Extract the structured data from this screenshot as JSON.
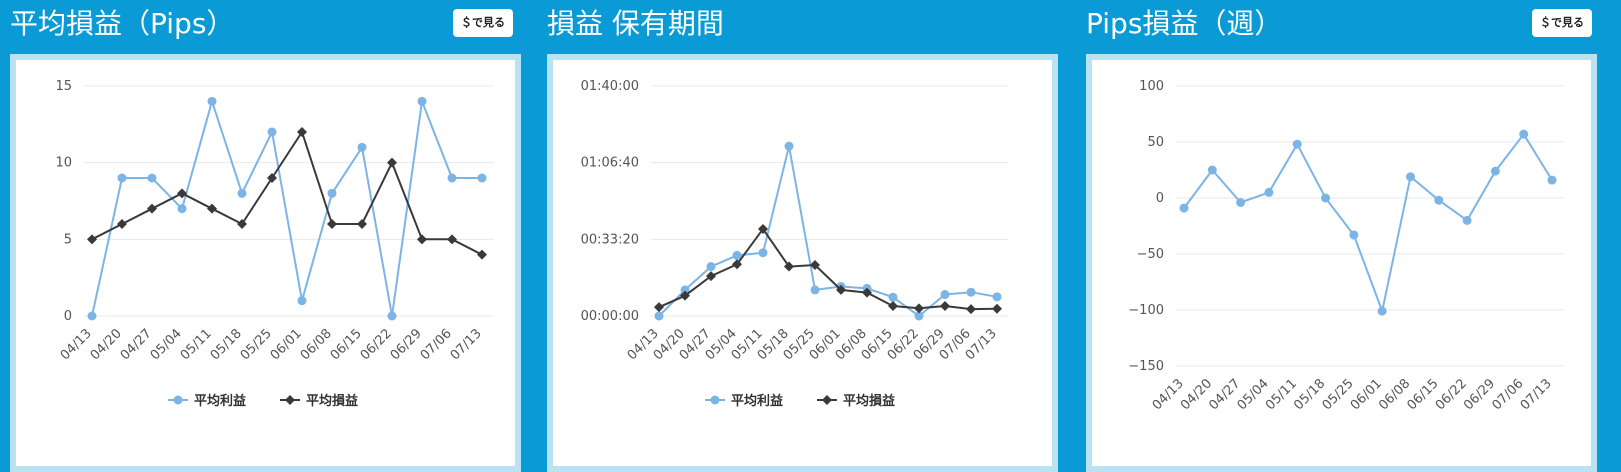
{
  "panels": [
    {
      "title": "平均損益（Pips）",
      "button": "＄で見る"
    },
    {
      "title": "損益 保有期間",
      "button": ""
    },
    {
      "title": "Pips損益（週）",
      "button": "＄で見る"
    }
  ],
  "colors": {
    "background": "#0a9ad6",
    "frame": "#b9e2f3",
    "profit": "#7db4e6",
    "loss": "#3a3a3a",
    "grid": "#e4e8ee"
  },
  "chart_data": [
    {
      "type": "line",
      "categories": [
        "04/13",
        "04/20",
        "04/27",
        "05/04",
        "05/11",
        "05/18",
        "05/25",
        "06/01",
        "06/08",
        "06/15",
        "06/22",
        "06/29",
        "07/06",
        "07/13"
      ],
      "ylim": [
        0,
        15
      ],
      "yticks": [
        0,
        5,
        10,
        15
      ],
      "ytick_labels": [
        "0",
        "5",
        "10",
        "15"
      ],
      "legend": "bottom-center",
      "series": [
        {
          "name": "平均利益",
          "marker": "circle",
          "values": [
            0,
            9,
            9,
            7,
            14,
            8,
            12,
            1,
            8,
            11,
            0,
            14,
            9,
            9
          ]
        },
        {
          "name": "平均損益",
          "marker": "diamond",
          "values": [
            5,
            6,
            7,
            8,
            7,
            6,
            9,
            12,
            6,
            6,
            10,
            5,
            5,
            4
          ]
        }
      ]
    },
    {
      "type": "line",
      "categories": [
        "04/13",
        "04/20",
        "04/27",
        "05/04",
        "05/11",
        "05/18",
        "05/25",
        "06/01",
        "06/08",
        "06/15",
        "06/22",
        "06/29",
        "07/06",
        "07/13"
      ],
      "ylim": [
        0,
        6000
      ],
      "yticks": [
        0,
        2000,
        4000,
        6000
      ],
      "ytick_labels": [
        "00:00:00",
        "00:33:20",
        "01:06:40",
        "01:40:00"
      ],
      "legend": "bottom-center",
      "series": [
        {
          "name": "平均利益",
          "marker": "circle",
          "values": [
            0,
            680,
            1290,
            1580,
            1650,
            4430,
            680,
            770,
            720,
            490,
            0,
            560,
            620,
            500
          ]
        },
        {
          "name": "平均損益",
          "marker": "diamond",
          "values": [
            230,
            530,
            1040,
            1350,
            2270,
            1290,
            1330,
            680,
            610,
            260,
            200,
            260,
            180,
            190
          ]
        }
      ]
    },
    {
      "type": "line",
      "categories": [
        "04/13",
        "04/20",
        "04/27",
        "05/04",
        "05/11",
        "05/18",
        "05/25",
        "06/01",
        "06/08",
        "06/15",
        "06/22",
        "06/29",
        "07/06",
        "07/13"
      ],
      "ylim": [
        -150,
        100
      ],
      "yticks": [
        -150,
        -100,
        -50,
        0,
        50,
        100
      ],
      "ytick_labels": [
        "−150",
        "−100",
        "−50",
        "0",
        "50",
        "100"
      ],
      "legend": "none",
      "series": [
        {
          "marker": "circle",
          "values": [
            -9,
            25,
            -4,
            5,
            48,
            0,
            -33,
            -101,
            19,
            -2,
            -20,
            24,
            57,
            16
          ]
        }
      ]
    }
  ]
}
